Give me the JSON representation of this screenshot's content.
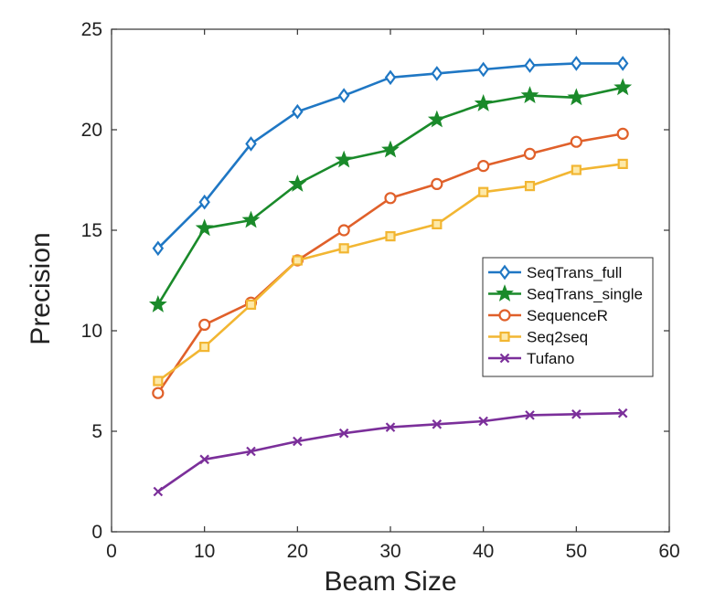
{
  "chart_data": {
    "type": "line",
    "xlabel": "Beam Size",
    "ylabel": "Precision",
    "xlim": [
      0,
      60
    ],
    "ylim": [
      0,
      25
    ],
    "xticks": [
      0,
      10,
      20,
      30,
      40,
      50,
      60
    ],
    "yticks": [
      0,
      5,
      10,
      15,
      20,
      25
    ],
    "grid": false,
    "legend_position": "right",
    "x": [
      5,
      10,
      15,
      20,
      25,
      30,
      35,
      40,
      45,
      50,
      55
    ],
    "series": [
      {
        "name": "SeqTrans_full",
        "color": "#1f77c4",
        "marker": "diamond",
        "values": [
          14.1,
          16.4,
          19.3,
          20.9,
          21.7,
          22.6,
          22.8,
          23.0,
          23.2,
          23.3,
          23.3
        ]
      },
      {
        "name": "SeqTrans_single",
        "color": "#1a8a2a",
        "marker": "star",
        "values": [
          11.3,
          15.1,
          15.5,
          17.3,
          18.5,
          19.0,
          20.5,
          21.3,
          21.7,
          21.6,
          22.1
        ]
      },
      {
        "name": "SequenceR",
        "color": "#e0602a",
        "marker": "circle",
        "values": [
          6.9,
          10.3,
          11.4,
          13.5,
          15.0,
          16.6,
          17.3,
          18.2,
          18.8,
          19.4,
          19.8
        ]
      },
      {
        "name": "Seq2seq",
        "color": "#f2b632",
        "marker": "square",
        "values": [
          7.5,
          9.2,
          11.3,
          13.5,
          14.1,
          14.7,
          15.3,
          16.9,
          17.2,
          18.0,
          18.3
        ]
      },
      {
        "name": "Tufano",
        "color": "#7b2f9a",
        "marker": "x",
        "values": [
          2.0,
          3.6,
          4.0,
          4.5,
          4.9,
          5.2,
          5.35,
          5.5,
          5.8,
          5.85,
          5.9
        ]
      }
    ]
  }
}
